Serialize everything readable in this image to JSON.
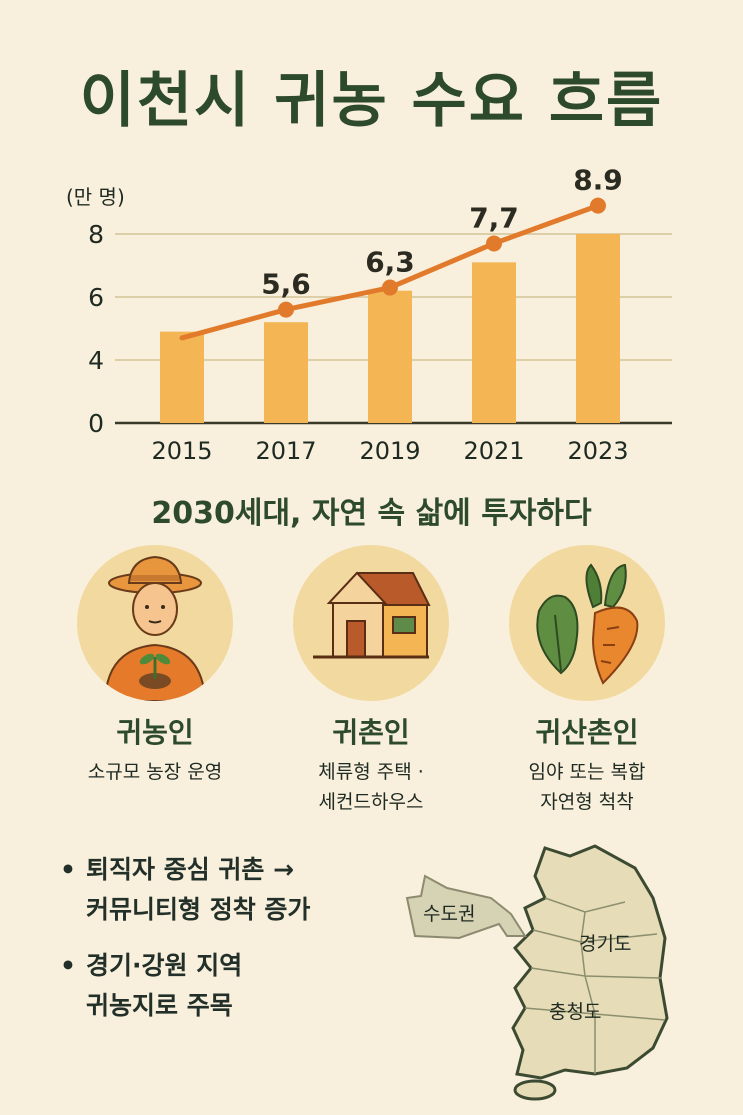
{
  "title": "이천시 귀농 수요 흐름",
  "subtitle": "2030세대, 자연 속 삶에 투자하다",
  "chart_data": {
    "type": "bar",
    "unit": "(만 명)",
    "categories": [
      "2015",
      "2017",
      "2019",
      "2021",
      "2023"
    ],
    "series": [
      {
        "type": "bar",
        "values": [
          4.9,
          5.2,
          6.2,
          7.1,
          8.0
        ]
      },
      {
        "type": "line",
        "values": [
          4.7,
          5.6,
          6.3,
          7.7,
          8.9
        ],
        "labels": [
          "",
          "5,6",
          "6,3",
          "7,7",
          "8.9"
        ]
      }
    ],
    "yticks": [
      "0",
      "4",
      "6",
      "8"
    ],
    "ylim": [
      0,
      8.9
    ],
    "grid": true,
    "colors": {
      "bar": "#f4b654",
      "line": "#e27a2b"
    }
  },
  "categories": [
    {
      "name": "귀농인",
      "desc": [
        "소규모 농장 운영"
      ],
      "icon": "farmer-icon"
    },
    {
      "name": "귀촌인",
      "desc": [
        "체류형 주택 ·",
        "세컨드하우스"
      ],
      "icon": "house-icon"
    },
    {
      "name": "귀산촌인",
      "desc": [
        "임야 또는 복합",
        "자연형 척착"
      ],
      "icon": "vegetable-icon"
    }
  ],
  "bullets": [
    {
      "dot": "•",
      "lines": [
        "퇴직자 중심 귀촌 →",
        "커뮤니티형 정착 증가"
      ]
    },
    {
      "dot": "•",
      "lines": [
        "경기·강원 지역",
        "귀농지로 주목"
      ]
    }
  ],
  "map": {
    "arrow_label": "수도권",
    "region_labels": [
      "경기도",
      "충청도"
    ]
  },
  "colors": {
    "background": "#f8f0dc",
    "title": "#2e4a2c",
    "circle": "#f2d9a0"
  }
}
